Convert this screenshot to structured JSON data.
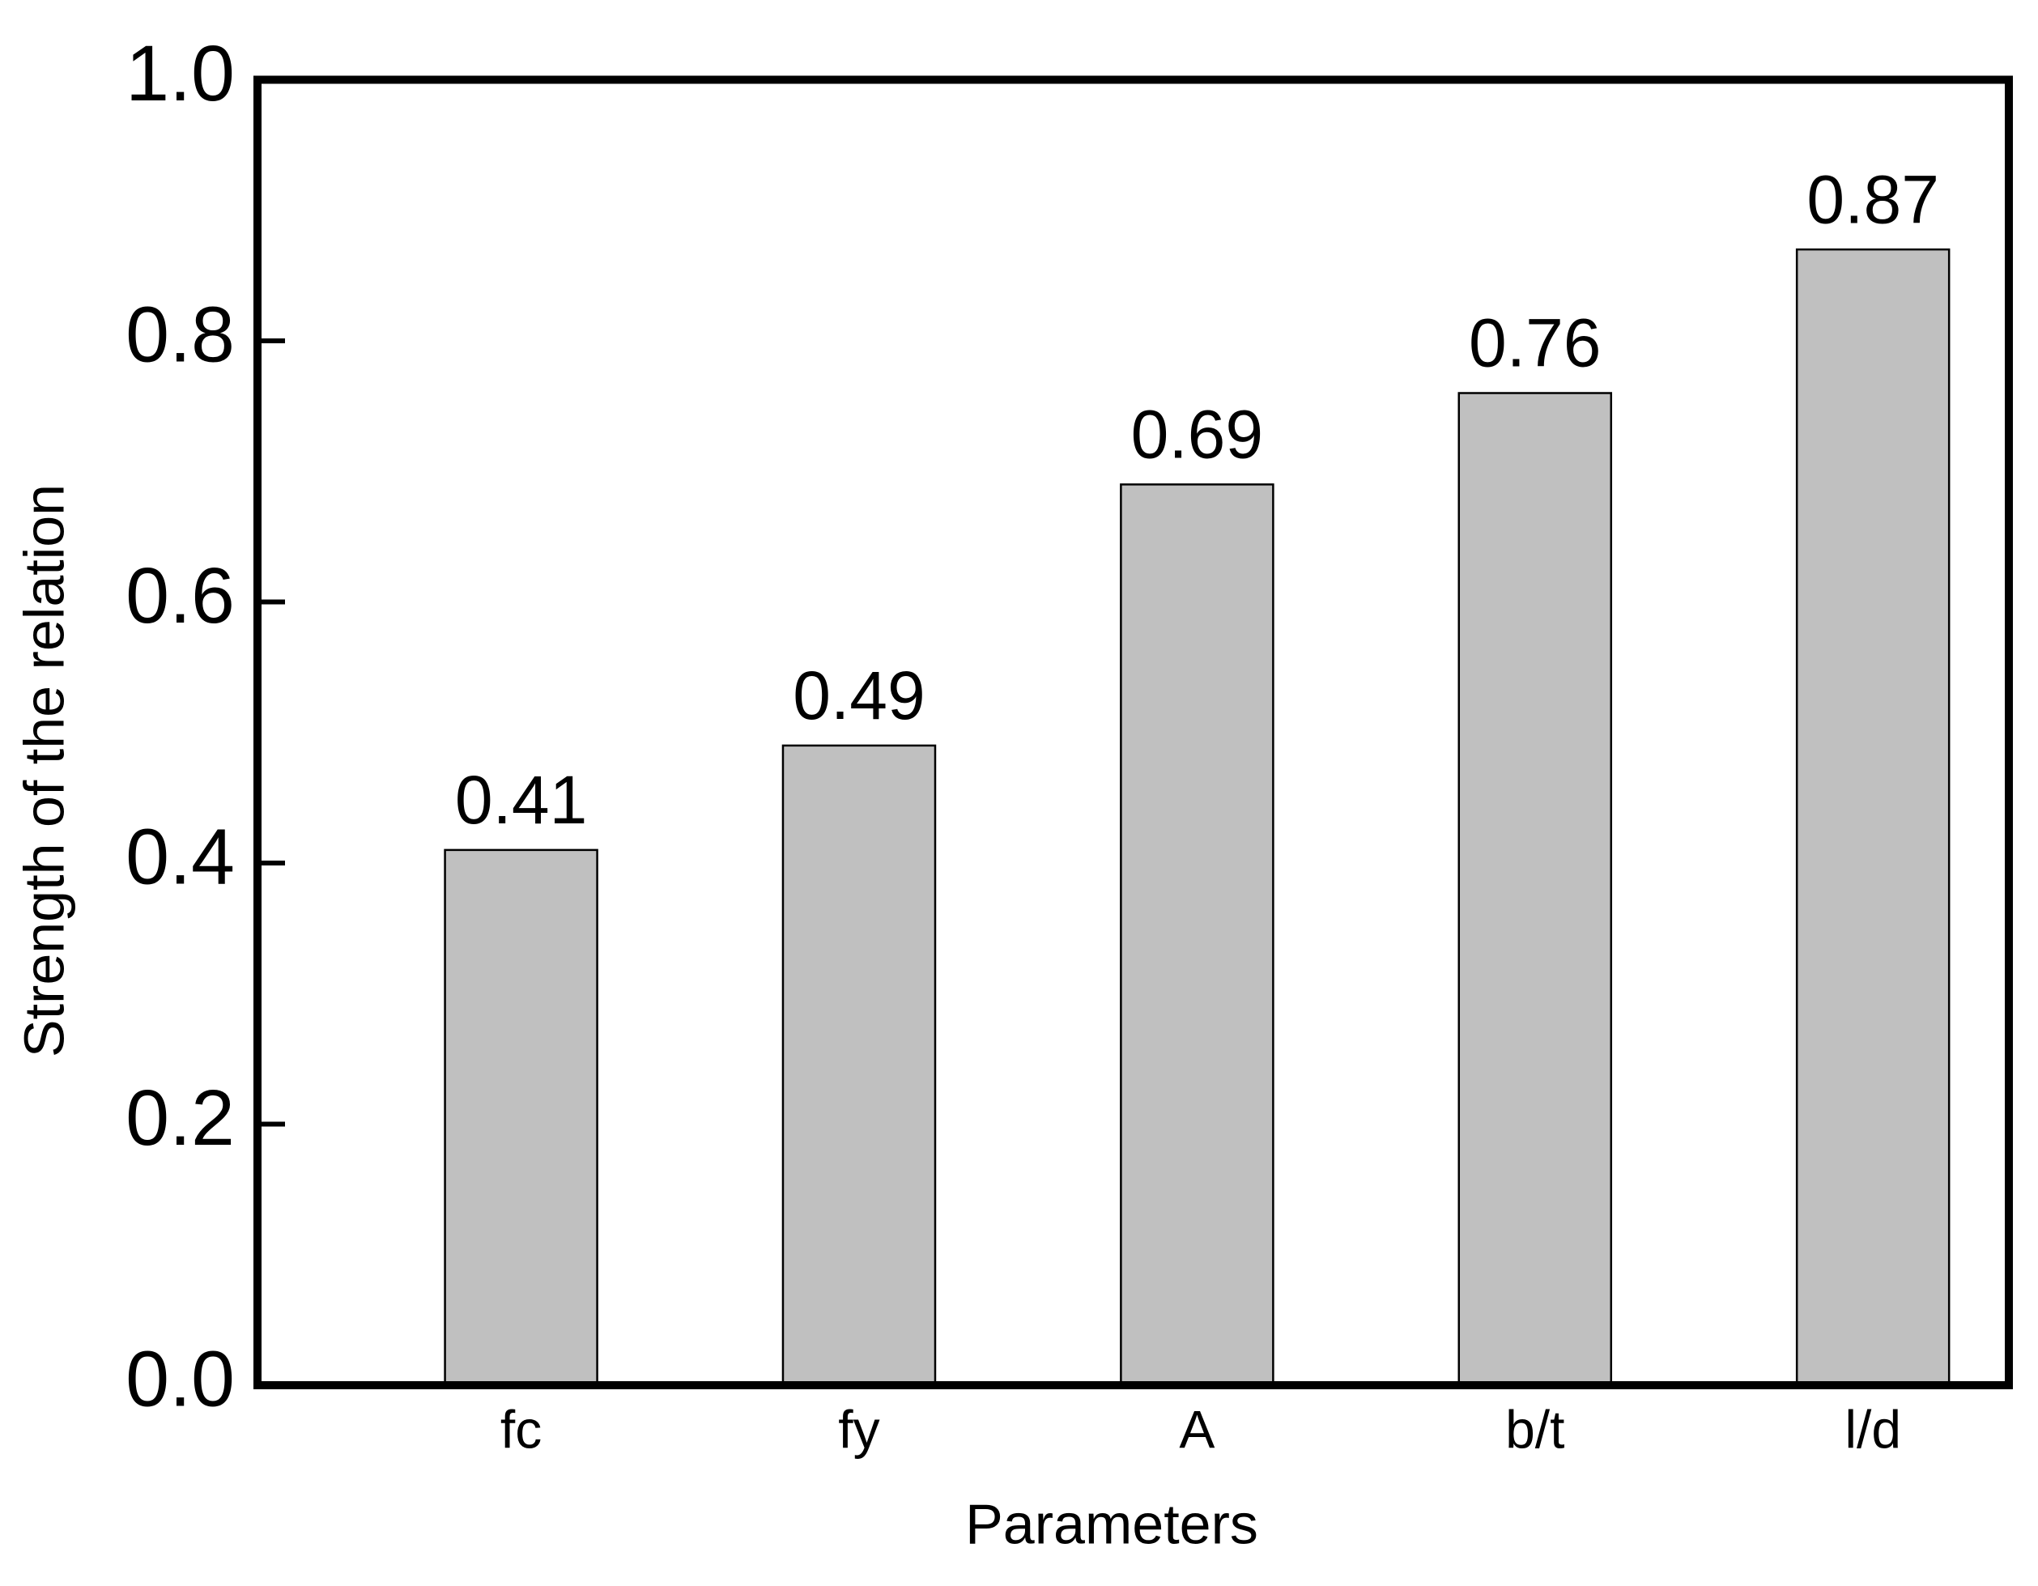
{
  "chart_data": {
    "type": "bar",
    "x_label": "Parameters",
    "y_label": "Strength of the relation",
    "categories": [
      "fc",
      "fy",
      "A",
      "b/t",
      "l/d"
    ],
    "values": [
      0.41,
      0.49,
      0.69,
      0.76,
      0.87
    ],
    "color": "#c0c0c0",
    "ylim": [
      0,
      1.0
    ],
    "yticks": [
      {
        "value": 0,
        "label": "0.0"
      },
      0.2,
      0.4,
      0.6,
      0.8,
      {
        "value": 1,
        "label": "1.0"
      }
    ]
  }
}
